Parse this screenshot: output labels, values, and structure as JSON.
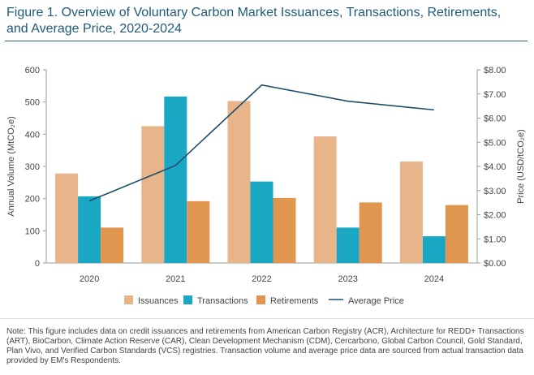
{
  "title": "Figure 1. Overview of Voluntary Carbon Market Issuances, Transactions, Retirements, and Average Price, 2020-2024",
  "note": "Note: This figure includes data on credit issuances and retirements from American Carbon Registry (ACR), Architecture for REDD+ Transactions (ART), BioCarbon, Climate Action Reserve (CAR), Clean Development Mechanism (CDM), Cercarbono, Global Carbon Council, Gold Standard, Plan Vivo, and Verified Carbon Standards (VCS) registries. Transaction volume and average price data are sourced from actual transaction data provided by EM's Respondents.",
  "chart_data": {
    "type": "bar",
    "categories": [
      "2020",
      "2021",
      "2022",
      "2023",
      "2024"
    ],
    "series": [
      {
        "name": "Issuances",
        "values": [
          278,
          425,
          503,
          393,
          315
        ],
        "color": "#e8b48a"
      },
      {
        "name": "Transactions",
        "values": [
          207,
          517,
          253,
          110,
          83
        ],
        "color": "#1aa7c4"
      },
      {
        "name": "Retirements",
        "values": [
          110,
          192,
          202,
          188,
          180
        ],
        "color": "#e0964f"
      }
    ],
    "line_series": {
      "name": "Average Price",
      "values": [
        2.57,
        4.04,
        7.37,
        6.7,
        6.34
      ],
      "color": "#1f4e6b",
      "axis": "right"
    },
    "ylabel": "Annual Volume (MtCO₂e)",
    "y2label": "Price (USD/tCO₂e)",
    "ylim": [
      0,
      600
    ],
    "y2lim": [
      0,
      8
    ],
    "yticks": [
      "0",
      "100",
      "200",
      "300",
      "400",
      "500",
      "600"
    ],
    "y2ticks": [
      "$0.00",
      "$1.00",
      "$2.00",
      "$3.00",
      "$4.00",
      "$5.00",
      "$6.00",
      "$7.00",
      "$8.00"
    ],
    "grid": false,
    "legend_position": "bottom"
  }
}
